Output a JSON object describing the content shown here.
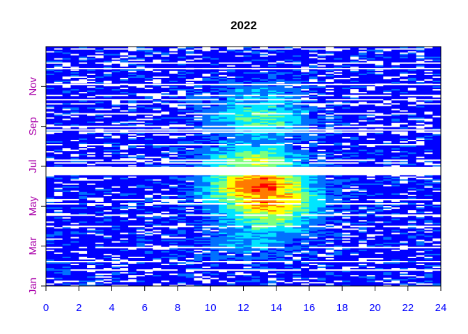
{
  "chart_data": {
    "type": "heatmap",
    "title": "2022",
    "xlabel": "",
    "ylabel": "",
    "x_range": [
      0,
      24
    ],
    "x_ticks": [
      "0",
      "2",
      "4",
      "6",
      "8",
      "10",
      "12",
      "14",
      "16",
      "18",
      "20",
      "22",
      "24"
    ],
    "y_range_months": [
      0,
      12
    ],
    "y_ticks": [
      {
        "month": 0,
        "label": "Jan"
      },
      {
        "month": 2,
        "label": "Mar"
      },
      {
        "month": 4,
        "label": "May"
      },
      {
        "month": 6,
        "label": "Jul"
      },
      {
        "month": 8,
        "label": "Sep"
      },
      {
        "month": 10,
        "label": "Nov"
      }
    ],
    "x_resolution_hours": 0.5,
    "grid": false,
    "legend": "none",
    "colormap": [
      "#0000ff",
      "#0070ff",
      "#00e5ff",
      "#7dff7d",
      "#ffff00",
      "#ff7a00",
      "#ff0000"
    ],
    "missing_month_ranges": [
      [
        5.55,
        5.97
      ],
      [
        7.79,
        7.86
      ],
      [
        10.07,
        10.13
      ],
      [
        10.87,
        10.92
      ]
    ],
    "activity_peaks": [
      {
        "month": 2.4,
        "hour": 12.5,
        "level": 0.25
      },
      {
        "month": 3.6,
        "hour": 13.5,
        "level": 0.55
      },
      {
        "month": 4.3,
        "hour": 13.5,
        "level": 0.85
      },
      {
        "month": 5.0,
        "hour": 13.0,
        "level": 0.95
      },
      {
        "month": 6.2,
        "hour": 12.5,
        "level": 0.55
      },
      {
        "month": 8.4,
        "hour": 13.0,
        "level": 0.45
      },
      {
        "month": 9.2,
        "hour": 13.0,
        "level": 0.3
      }
    ]
  },
  "colors": {
    "x_tick_color": "#0000ff",
    "y_tick_color": "#aa00aa",
    "frame_color": "#000000",
    "background": "#ffffff"
  }
}
